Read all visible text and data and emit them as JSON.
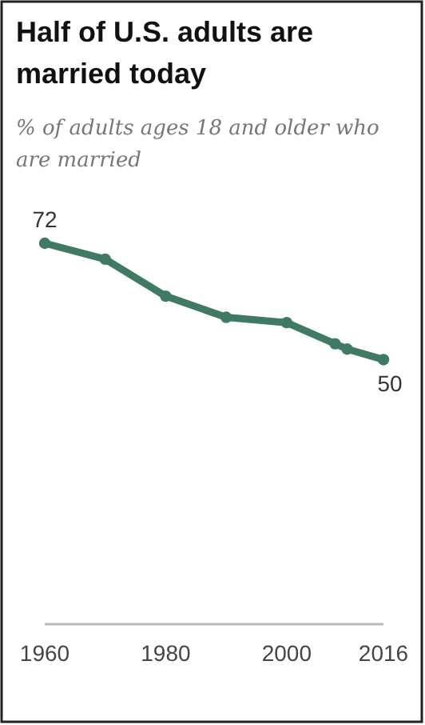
{
  "chart_data": {
    "type": "line",
    "title": "Half of U.S. adults are married today",
    "subtitle": "% of adults ages 18 and older who are married",
    "x": [
      1960,
      1970,
      1980,
      1990,
      2000,
      2008,
      2010,
      2016
    ],
    "series": [
      {
        "color": "#3f7a63",
        "values": [
          72,
          69,
          62,
          58,
          57,
          53,
          52,
          50
        ],
        "value_labels": [
          "72",
          null,
          null,
          null,
          null,
          null,
          null,
          "50"
        ]
      }
    ],
    "xlim": [
      1960,
      2016
    ],
    "xticks": [
      1960,
      1980,
      2000,
      2016
    ],
    "tick_labels": "x",
    "marker": "circle"
  }
}
